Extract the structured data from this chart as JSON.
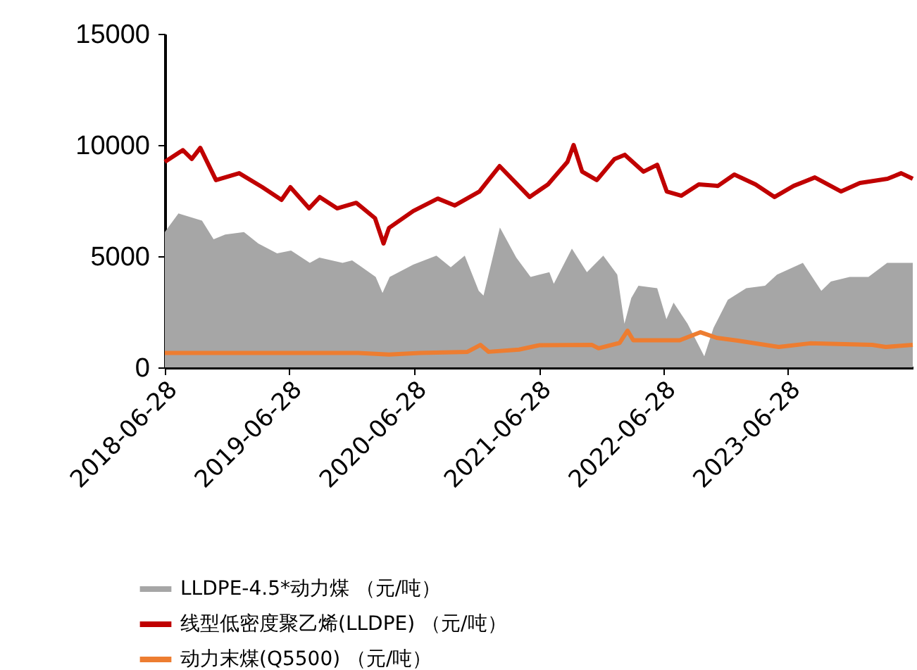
{
  "chart_data": {
    "type": "line",
    "legend": "bottom",
    "xlim": [
      "2018-06-28",
      "2024-06-28"
    ],
    "xticks": [
      "2018-06-28",
      "2019-06-28",
      "2020-06-28",
      "2021-06-28",
      "2022-06-28",
      "2023-06-28"
    ],
    "ylim": [
      0,
      15000
    ],
    "yticks": [
      0,
      5000,
      10000,
      15000
    ],
    "series": [
      {
        "name": "LLDPE-4.5*动力煤 （元/吨）",
        "type": "area",
        "color": "#a6a6a6",
        "x": [
          "2018-06-28",
          "2018-08-07",
          "2018-10-15",
          "2018-11-18",
          "2018-12-22",
          "2019-02-15",
          "2019-03-29",
          "2019-05-23",
          "2019-07-03",
          "2019-08-27",
          "2019-09-24",
          "2019-12-01",
          "2019-12-29",
          "2020-03-07",
          "2020-03-27",
          "2020-04-17",
          "2020-06-25",
          "2020-09-01",
          "2020-10-13",
          "2020-11-23",
          "2021-01-03",
          "2021-01-17",
          "2021-03-06",
          "2021-04-23",
          "2021-06-04",
          "2021-07-29",
          "2021-08-11",
          "2021-10-03",
          "2021-11-16",
          "2022-01-03",
          "2022-02-13",
          "2022-03-06",
          "2022-03-26",
          "2022-04-16",
          "2022-06-10",
          "2022-07-07",
          "2022-07-28",
          "2022-09-07",
          "2022-10-26",
          "2022-11-22",
          "2023-01-03",
          "2023-02-26",
          "2023-04-22",
          "2023-05-27",
          "2023-08-11",
          "2023-10-04",
          "2023-11-01",
          "2023-12-26",
          "2024-02-19",
          "2024-04-14",
          "2024-06-28"
        ],
        "values": [
          6080,
          6920,
          6600,
          5760,
          5970,
          6080,
          5570,
          5130,
          5250,
          4700,
          4940,
          4700,
          4810,
          4070,
          3350,
          4070,
          4620,
          5020,
          4500,
          5020,
          3440,
          3230,
          6290,
          4940,
          4070,
          4280,
          3760,
          5340,
          4280,
          5020,
          4170,
          1960,
          3120,
          3670,
          3560,
          2170,
          2910,
          1960,
          500,
          1770,
          3040,
          3560,
          3670,
          4170,
          4700,
          3440,
          3860,
          4070,
          4070,
          4700,
          4700
        ]
      },
      {
        "name": "线型低密度聚乙烯(LLDPE) （元/吨）",
        "color": "#c00000",
        "x": [
          "2018-06-28",
          "2018-08-20",
          "2018-09-15",
          "2018-10-10",
          "2018-11-25",
          "2019-02-01",
          "2019-04-10",
          "2019-06-05",
          "2019-07-01",
          "2019-08-25",
          "2019-09-25",
          "2019-11-15",
          "2020-01-10",
          "2020-03-05",
          "2020-03-30",
          "2020-04-15",
          "2020-06-25",
          "2020-09-05",
          "2020-10-25",
          "2021-01-05",
          "2021-03-05",
          "2021-06-01",
          "2021-07-25",
          "2021-09-20",
          "2021-10-08",
          "2021-11-02",
          "2021-12-15",
          "2022-02-05",
          "2022-03-07",
          "2022-05-01",
          "2022-06-10",
          "2022-07-08",
          "2022-08-20",
          "2022-10-10",
          "2022-12-05",
          "2023-01-22",
          "2023-03-25",
          "2023-05-20",
          "2023-07-15",
          "2023-09-15",
          "2023-12-01",
          "2024-01-25",
          "2024-04-15",
          "2024-05-25",
          "2024-06-28"
        ],
        "values": [
          9240,
          9770,
          9370,
          9870,
          8420,
          8730,
          8100,
          7530,
          8100,
          7150,
          7660,
          7150,
          7400,
          6710,
          5570,
          6270,
          7030,
          7590,
          7280,
          7910,
          9050,
          7660,
          8230,
          9240,
          10000,
          8800,
          8420,
          9370,
          9560,
          8800,
          9110,
          7910,
          7720,
          8230,
          8160,
          8670,
          8230,
          7660,
          8160,
          8540,
          7910,
          8290,
          8480,
          8730,
          8480
        ]
      },
      {
        "name": "动力末煤(Q5500) （元/吨）",
        "color": "#ed7d31",
        "x": [
          "2018-06-28",
          "2019-06-28",
          "2020-01-15",
          "2020-04-15",
          "2020-07-15",
          "2020-12-01",
          "2021-01-08",
          "2021-02-01",
          "2021-05-01",
          "2021-07-01",
          "2021-12-01",
          "2021-12-20",
          "2022-02-20",
          "2022-03-15",
          "2022-04-01",
          "2022-08-15",
          "2022-10-15",
          "2022-12-01",
          "2023-02-01",
          "2023-06-01",
          "2023-09-01",
          "2024-03-01",
          "2024-04-10",
          "2024-06-28"
        ],
        "values": [
          650,
          650,
          650,
          580,
          650,
          700,
          1010,
          700,
          800,
          1000,
          1010,
          860,
          1100,
          1650,
          1220,
          1220,
          1580,
          1330,
          1200,
          920,
          1080,
          1010,
          920,
          1010
        ]
      }
    ]
  }
}
